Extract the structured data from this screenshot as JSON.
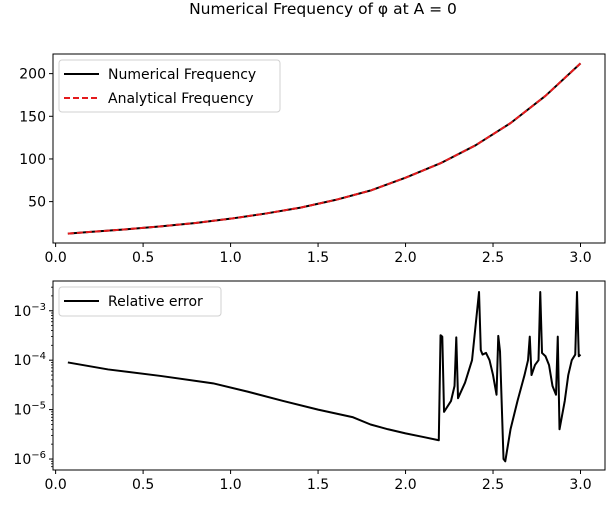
{
  "figure": {
    "title": "Numerical Frequency of φ at A = 0"
  },
  "chart_data": [
    {
      "type": "line",
      "title": "",
      "xlabel": "",
      "ylabel": "",
      "xlim": [
        -0.015,
        3.14
      ],
      "ylim": [
        1.5,
        223
      ],
      "yscale": "linear",
      "grid": false,
      "legend": "top-left",
      "xticks": [
        0.0,
        0.5,
        1.0,
        1.5,
        2.0,
        2.5,
        3.0
      ],
      "xtick_labels": [
        "0.0",
        "0.5",
        "1.0",
        "1.5",
        "2.0",
        "2.5",
        "3.0"
      ],
      "yticks": [
        50,
        100,
        150,
        200
      ],
      "ytick_labels": [
        "50",
        "100",
        "150",
        "200"
      ],
      "series": [
        {
          "name": "Numerical Frequency",
          "color": "#000000",
          "style": "solid",
          "x": [
            0.07,
            0.2,
            0.4,
            0.6,
            0.8,
            1.0,
            1.2,
            1.4,
            1.6,
            1.8,
            2.0,
            2.2,
            2.4,
            2.6,
            2.8,
            3.0
          ],
          "y": [
            12.5,
            14.5,
            17.5,
            21,
            25,
            30,
            36,
            43,
            52,
            63,
            78,
            95,
            116,
            142,
            174,
            212
          ]
        },
        {
          "name": "Analytical Frequency",
          "color": "#e41a1c",
          "style": "dashed",
          "x": [
            0.07,
            0.2,
            0.4,
            0.6,
            0.8,
            1.0,
            1.2,
            1.4,
            1.6,
            1.8,
            2.0,
            2.2,
            2.4,
            2.6,
            2.8,
            3.0
          ],
          "y": [
            12.5,
            14.5,
            17.5,
            21,
            25,
            30,
            36,
            43,
            52,
            63,
            78,
            95,
            116,
            142,
            174,
            212
          ]
        }
      ]
    },
    {
      "type": "line",
      "title": "",
      "xlabel": "",
      "ylabel": "",
      "xlim": [
        -0.015,
        3.14
      ],
      "ylim": [
        6e-07,
        0.004
      ],
      "yscale": "log",
      "grid": false,
      "legend": "top-left",
      "xticks": [
        0.0,
        0.5,
        1.0,
        1.5,
        2.0,
        2.5,
        3.0
      ],
      "xtick_labels": [
        "0.0",
        "0.5",
        "1.0",
        "1.5",
        "2.0",
        "2.5",
        "3.0"
      ],
      "yticks": [
        1e-06,
        1e-05,
        0.0001,
        0.001
      ],
      "ytick_labels": [
        {
          "base": "10",
          "exp": "−6"
        },
        {
          "base": "10",
          "exp": "−5"
        },
        {
          "base": "10",
          "exp": "−4"
        },
        {
          "base": "10",
          "exp": "−3"
        }
      ],
      "series": [
        {
          "name": "Relative error",
          "color": "#000000",
          "style": "solid",
          "x": [
            0.07,
            0.3,
            0.6,
            0.9,
            1.1,
            1.3,
            1.5,
            1.7,
            1.8,
            1.9,
            2.0,
            2.1,
            2.19,
            2.2,
            2.21,
            2.22,
            2.26,
            2.28,
            2.29,
            2.3,
            2.34,
            2.38,
            2.42,
            2.43,
            2.44,
            2.46,
            2.48,
            2.5,
            2.52,
            2.53,
            2.54,
            2.56,
            2.57,
            2.6,
            2.64,
            2.68,
            2.7,
            2.71,
            2.72,
            2.74,
            2.76,
            2.77,
            2.78,
            2.8,
            2.82,
            2.84,
            2.86,
            2.87,
            2.88,
            2.91,
            2.93,
            2.95,
            2.97,
            2.98,
            2.99,
            3.0
          ],
          "y": [
            9e-05,
            6.5e-05,
            4.8e-05,
            3.4e-05,
            2.3e-05,
            1.5e-05,
            1e-05,
            7e-06,
            5e-06,
            4e-06,
            3.3e-06,
            2.8e-06,
            2.4e-06,
            0.00032,
            0.0003,
            9e-06,
            1.5e-05,
            3e-05,
            0.00029,
            1.7e-05,
            3.5e-05,
            0.0001,
            0.0024,
            0.00016,
            0.00013,
            0.00014,
            0.0001,
            5e-05,
            2e-05,
            0.00031,
            0.00015,
            1e-06,
            9e-07,
            4e-06,
            1.5e-05,
            5e-05,
            0.0001,
            0.0003,
            5e-05,
            8e-05,
            0.0001,
            0.0024,
            0.00014,
            0.00012,
            8e-05,
            3e-05,
            2e-05,
            0.0003,
            4e-06,
            1.5e-05,
            5e-05,
            0.0001,
            0.00013,
            0.0024,
            0.00012,
            0.00013
          ]
        }
      ]
    }
  ]
}
